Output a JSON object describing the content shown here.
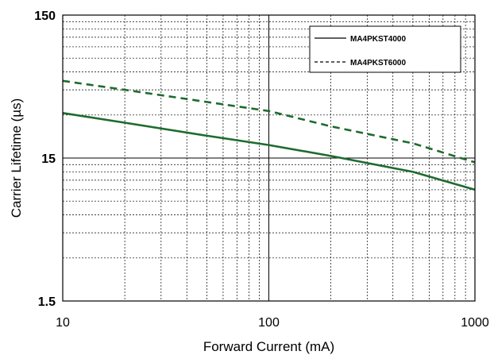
{
  "chart_data": {
    "type": "line",
    "xlabel": "Forward Current (mA)",
    "ylabel": "Carrier Lifetime (µs)",
    "x_scale": "log",
    "y_scale": "log",
    "xlim": [
      10,
      1000
    ],
    "ylim": [
      1.5,
      150
    ],
    "x_ticks": [
      "10",
      "100",
      "1000"
    ],
    "y_ticks": [
      "1.5",
      "15",
      "150"
    ],
    "grid": true,
    "legend_position": "top-right",
    "series": [
      {
        "name": "MA4PKST4000",
        "style": "solid",
        "color": "#1e6b2e",
        "x": [
          10,
          20,
          50,
          100,
          200,
          500,
          1000
        ],
        "y": [
          31,
          26.5,
          21.5,
          18.5,
          15.5,
          12,
          9
        ]
      },
      {
        "name": "MA4PKST6000",
        "style": "dashed",
        "color": "#1e6b2e",
        "x": [
          10,
          20,
          50,
          100,
          200,
          500,
          1000
        ],
        "y": [
          52,
          45,
          37,
          32,
          25,
          19,
          14
        ]
      }
    ]
  }
}
